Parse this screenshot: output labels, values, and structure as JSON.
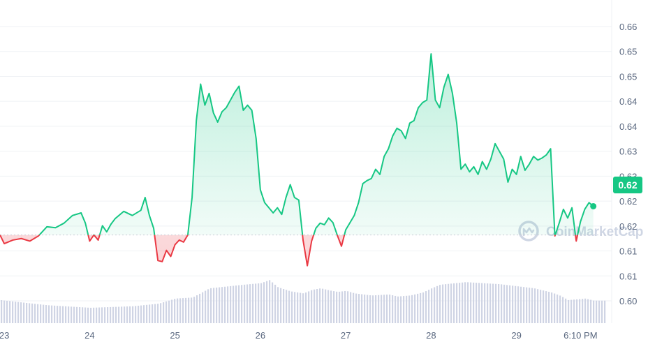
{
  "chart_data": {
    "type": "area",
    "title": "",
    "xlabel": "",
    "ylabel": "",
    "ylim": [
      0.6,
      0.663
    ],
    "baseline": 0.6172,
    "current_price_label": "0.62",
    "y_tick_labels": [
      "0.66",
      "0.65",
      "0.65",
      "0.64",
      "0.64",
      "0.63",
      "0.63",
      "0.62",
      "0.62",
      "0.61",
      "0.61",
      "0.60"
    ],
    "x_tick_labels": [
      "23",
      "24",
      "25",
      "26",
      "27",
      "28",
      "29",
      "6:10 PM"
    ],
    "grid": true,
    "legend": "none",
    "colors": {
      "up": "#16c784",
      "down": "#ea3943",
      "volume": "#cfd4e4",
      "grid": "#eff2f5",
      "baseline": "#c7ccd6",
      "badge": "#16c784"
    },
    "watermark": "CoinMarketCap",
    "x_range": [
      22.95,
      30.05
    ],
    "series": [
      {
        "kind": "price",
        "x": [
          22.95,
          23.0,
          23.1,
          23.2,
          23.3,
          23.4,
          23.5,
          23.6,
          23.7,
          23.8,
          23.9,
          23.95,
          24.0,
          24.05,
          24.1,
          24.15,
          24.2,
          24.25,
          24.3,
          24.4,
          24.5,
          24.6,
          24.65,
          24.7,
          24.75,
          24.8,
          24.85,
          24.9,
          24.95,
          25.0,
          25.05,
          25.1,
          25.15,
          25.2,
          25.25,
          25.3,
          25.35,
          25.4,
          25.45,
          25.5,
          25.55,
          25.6,
          25.65,
          25.7,
          25.75,
          25.8,
          25.85,
          25.9,
          25.95,
          26.0,
          26.05,
          26.1,
          26.15,
          26.2,
          26.25,
          26.3,
          26.35,
          26.4,
          26.45,
          26.5,
          26.55,
          26.6,
          26.65,
          26.7,
          26.75,
          26.8,
          26.85,
          26.9,
          26.95,
          27.0,
          27.05,
          27.1,
          27.15,
          27.2,
          27.25,
          27.3,
          27.35,
          27.4,
          27.45,
          27.5,
          27.55,
          27.6,
          27.65,
          27.7,
          27.75,
          27.8,
          27.85,
          27.9,
          27.95,
          28.0,
          28.05,
          28.1,
          28.15,
          28.2,
          28.25,
          28.3,
          28.35,
          28.4,
          28.45,
          28.5,
          28.55,
          28.6,
          28.65,
          28.7,
          28.75,
          28.8,
          28.85,
          28.9,
          28.95,
          29.0,
          29.05,
          29.1,
          29.15,
          29.2,
          29.25,
          29.3,
          29.35,
          29.4,
          29.45,
          29.5,
          29.55,
          29.6,
          29.65,
          29.7,
          29.75,
          29.8,
          29.85,
          29.9
        ],
        "values": [
          0.6172,
          0.6155,
          0.6162,
          0.6165,
          0.616,
          0.617,
          0.6188,
          0.6186,
          0.6195,
          0.621,
          0.6215,
          0.6195,
          0.616,
          0.6172,
          0.6162,
          0.619,
          0.6178,
          0.6193,
          0.6204,
          0.6218,
          0.621,
          0.622,
          0.6245,
          0.621,
          0.6185,
          0.6122,
          0.612,
          0.6142,
          0.613,
          0.6153,
          0.6162,
          0.6158,
          0.6172,
          0.6245,
          0.6395,
          0.6466,
          0.6425,
          0.6448,
          0.641,
          0.6392,
          0.6412,
          0.642,
          0.6435,
          0.645,
          0.6462,
          0.6415,
          0.6425,
          0.6415,
          0.636,
          0.626,
          0.6235,
          0.6225,
          0.6215,
          0.6225,
          0.6212,
          0.6245,
          0.627,
          0.6245,
          0.624,
          0.6162,
          0.6112,
          0.616,
          0.6185,
          0.6195,
          0.6192,
          0.6205,
          0.6196,
          0.6172,
          0.615,
          0.6182,
          0.6196,
          0.621,
          0.6235,
          0.6272,
          0.6278,
          0.6282,
          0.63,
          0.629,
          0.6325,
          0.634,
          0.6365,
          0.638,
          0.6375,
          0.636,
          0.639,
          0.6395,
          0.642,
          0.643,
          0.6435,
          0.6525,
          0.6435,
          0.642,
          0.646,
          0.6485,
          0.6448,
          0.639,
          0.63,
          0.631,
          0.6295,
          0.6305,
          0.629,
          0.6315,
          0.63,
          0.632,
          0.635,
          0.6335,
          0.632,
          0.6275,
          0.63,
          0.629,
          0.6325,
          0.6298,
          0.631,
          0.6325,
          0.6318,
          0.6322,
          0.6328,
          0.634,
          0.617,
          0.6195,
          0.6222,
          0.6205,
          0.6225,
          0.616,
          0.6198,
          0.6222,
          0.6235,
          0.6228
        ]
      },
      {
        "kind": "volume",
        "x": [
          22.95,
          23.5,
          24.0,
          24.5,
          24.8,
          25.0,
          25.2,
          25.4,
          25.8,
          26.0,
          26.1,
          26.2,
          26.35,
          26.5,
          26.6,
          26.7,
          26.8,
          26.9,
          27.0,
          27.1,
          27.3,
          27.5,
          27.6,
          27.75,
          27.9,
          28.0,
          28.1,
          28.4,
          28.6,
          28.8,
          29.0,
          29.2,
          29.4,
          29.5,
          29.6,
          29.8,
          29.9
        ],
        "values": [
          0.6045,
          0.6035,
          0.603,
          0.6033,
          0.6038,
          0.6048,
          0.605,
          0.6068,
          0.6075,
          0.6078,
          0.6084,
          0.607,
          0.6062,
          0.6058,
          0.6065,
          0.6068,
          0.6064,
          0.6061,
          0.6063,
          0.6058,
          0.6054,
          0.6056,
          0.6052,
          0.6054,
          0.606,
          0.6068,
          0.6075,
          0.608,
          0.6078,
          0.6076,
          0.6072,
          0.6068,
          0.606,
          0.6054,
          0.6045,
          0.6048,
          0.6044
        ]
      }
    ]
  }
}
